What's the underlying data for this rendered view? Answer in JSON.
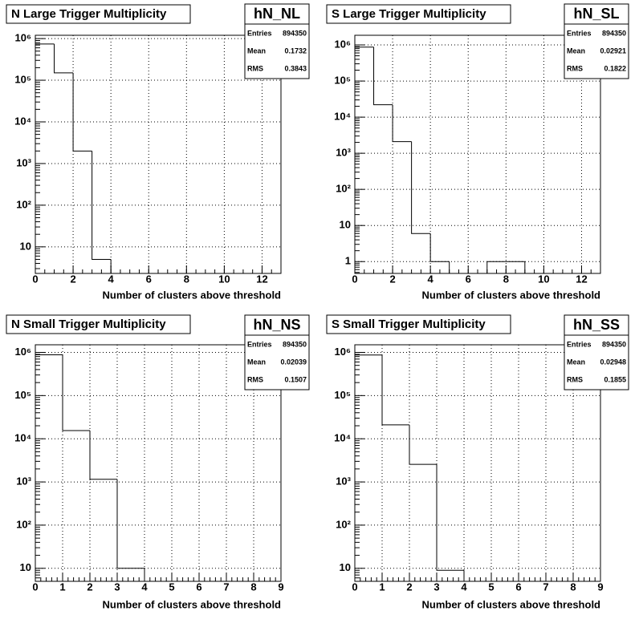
{
  "chart_data": [
    {
      "type": "histogram",
      "title": "N Large Trigger Multiplicity",
      "xlabel": "Number of clusters above threshold",
      "bins": [
        0,
        1,
        2,
        3,
        4,
        5,
        6,
        7,
        8,
        9,
        10,
        11,
        12,
        13
      ],
      "values": [
        740000,
        150000,
        2000,
        5,
        0,
        0,
        0,
        0,
        0,
        0,
        0,
        0,
        0
      ],
      "color": "#000000",
      "log_y": true,
      "grid": true,
      "xlim": [
        0,
        13
      ],
      "xticks": [
        0,
        2,
        4,
        6,
        8,
        10,
        12
      ],
      "ylim": [
        2.3,
        1200000
      ],
      "yticks": [
        10,
        {
          "value": 100,
          "label": "10²"
        },
        {
          "value": 1000,
          "label": "10³"
        },
        {
          "value": 10000,
          "label": "10⁴"
        },
        {
          "value": 100000,
          "label": "10⁵"
        },
        {
          "value": 1000000,
          "label": "10⁶"
        }
      ],
      "stats": {
        "name": "hN_NL",
        "entries_label": "Entries",
        "entries": 894350,
        "mean_label": "Mean",
        "mean": 0.1732,
        "rms_label": "RMS",
        "rms": 0.3843
      }
    },
    {
      "type": "histogram",
      "title": "S Large Trigger Multiplicity",
      "xlabel": "Number of clusters above threshold",
      "bins": [
        0,
        1,
        2,
        3,
        4,
        5,
        6,
        7,
        8,
        9,
        10,
        11,
        12,
        13
      ],
      "values": [
        870000,
        22000,
        2100,
        6,
        1,
        0,
        0,
        1,
        1,
        0,
        0,
        0,
        0
      ],
      "color": "#000000",
      "log_y": true,
      "grid": true,
      "xlim": [
        0,
        13
      ],
      "xticks": [
        0,
        2,
        4,
        6,
        8,
        10,
        12
      ],
      "ylim": [
        0.47,
        1850000
      ],
      "yticks": [
        1,
        10,
        {
          "value": 100,
          "label": "10²"
        },
        {
          "value": 1000,
          "label": "10³"
        },
        {
          "value": 10000,
          "label": "10⁴"
        },
        {
          "value": 100000,
          "label": "10⁵"
        },
        {
          "value": 1000000,
          "label": "10⁶"
        }
      ],
      "stats": {
        "name": "hN_SL",
        "entries_label": "Entries",
        "entries": 894350,
        "mean_label": "Mean",
        "mean": 0.02921,
        "rms_label": "RMS",
        "rms": 0.1822
      }
    },
    {
      "type": "histogram",
      "title": "N Small Trigger Multiplicity",
      "xlabel": "Number of clusters above threshold",
      "bins": [
        0,
        1,
        2,
        3,
        4,
        5,
        6,
        7,
        8,
        9
      ],
      "values": [
        877000,
        15500,
        1150,
        10,
        0,
        0,
        0,
        0,
        0
      ],
      "color": "#000000",
      "log_y": true,
      "grid": true,
      "xlim": [
        0,
        9
      ],
      "xticks": [
        0,
        1,
        2,
        3,
        4,
        5,
        6,
        7,
        8,
        9
      ],
      "ylim": [
        5,
        1500000
      ],
      "yticks": [
        10,
        {
          "value": 100,
          "label": "10²"
        },
        {
          "value": 1000,
          "label": "10³"
        },
        {
          "value": 10000,
          "label": "10⁴"
        },
        {
          "value": 100000,
          "label": "10⁵"
        },
        {
          "value": 1000000,
          "label": "10⁶"
        }
      ],
      "stats": {
        "name": "hN_NS",
        "entries_label": "Entries",
        "entries": 894350,
        "mean_label": "Mean",
        "mean": 0.02039,
        "rms_label": "RMS",
        "rms": 0.1507
      }
    },
    {
      "type": "histogram",
      "title": "S Small Trigger Multiplicity",
      "xlabel": "Number of clusters above threshold",
      "bins": [
        0,
        1,
        2,
        3,
        4,
        5,
        6,
        7,
        8,
        9
      ],
      "values": [
        868000,
        21000,
        2550,
        9,
        0,
        0,
        0,
        0,
        0
      ],
      "color": "#000000",
      "log_y": true,
      "grid": true,
      "xlim": [
        0,
        9
      ],
      "xticks": [
        0,
        1,
        2,
        3,
        4,
        5,
        6,
        7,
        8,
        9
      ],
      "ylim": [
        5,
        1500000
      ],
      "yticks": [
        10,
        {
          "value": 100,
          "label": "10²"
        },
        {
          "value": 1000,
          "label": "10³"
        },
        {
          "value": 10000,
          "label": "10⁴"
        },
        {
          "value": 100000,
          "label": "10⁵"
        },
        {
          "value": 1000000,
          "label": "10⁶"
        }
      ],
      "stats": {
        "name": "hN_SS",
        "entries_label": "Entries",
        "entries": 894350,
        "mean_label": "Mean",
        "mean": 0.02948,
        "rms_label": "RMS",
        "rms": 0.1855
      }
    }
  ]
}
